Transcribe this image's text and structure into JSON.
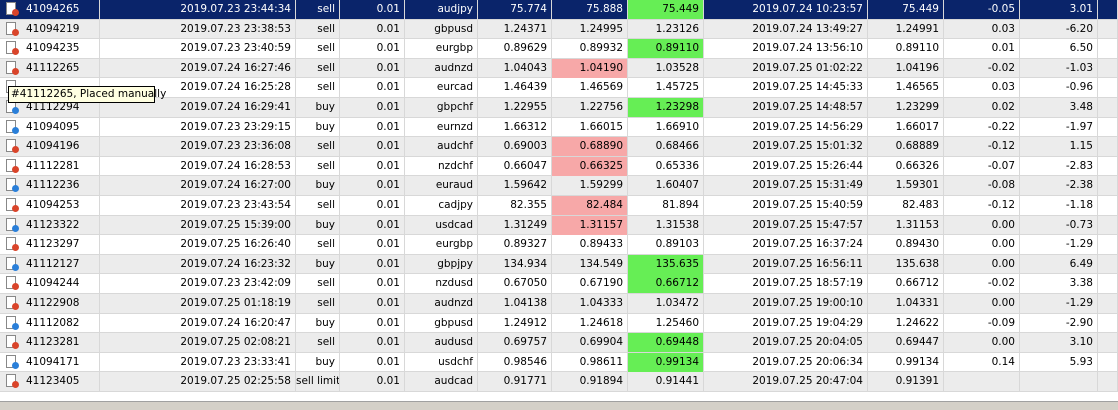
{
  "table": {
    "selected_row": 0,
    "selected_color": "#0a246a",
    "stripe_color": "#ececec",
    "highlight_colors": {
      "green": "#66ee55",
      "pink": "#f7a8a8"
    },
    "highlights": [
      {
        "row": 0,
        "col": 7,
        "color": "green"
      },
      {
        "row": 2,
        "col": 7,
        "color": "green"
      },
      {
        "row": 3,
        "col": 6,
        "color": "pink"
      },
      {
        "row": 5,
        "col": 7,
        "color": "green"
      },
      {
        "row": 7,
        "col": 6,
        "color": "pink"
      },
      {
        "row": 8,
        "col": 6,
        "color": "pink"
      },
      {
        "row": 10,
        "col": 6,
        "color": "pink"
      },
      {
        "row": 11,
        "col": 6,
        "color": "pink"
      },
      {
        "row": 13,
        "col": 7,
        "color": "green"
      },
      {
        "row": 14,
        "col": 7,
        "color": "green"
      },
      {
        "row": 17,
        "col": 7,
        "color": "green"
      },
      {
        "row": 18,
        "col": 7,
        "color": "green"
      }
    ],
    "rows": [
      {
        "icon": "#d9442a",
        "cells": [
          "41094265",
          "2019.07.23 23:44:34",
          "sell",
          "0.01",
          "audjpy",
          "75.774",
          "75.888",
          "75.449",
          "2019.07.24 10:23:57",
          "75.449",
          "-0.05",
          "3.01"
        ]
      },
      {
        "icon": "#d9442a",
        "cells": [
          "41094219",
          "2019.07.23 23:38:53",
          "sell",
          "0.01",
          "gbpusd",
          "1.24371",
          "1.24995",
          "1.23126",
          "2019.07.24 13:49:27",
          "1.24991",
          "0.03",
          "-6.20"
        ]
      },
      {
        "icon": "#d9442a",
        "cells": [
          "41094235",
          "2019.07.23 23:40:59",
          "sell",
          "0.01",
          "eurgbp",
          "0.89629",
          "0.89932",
          "0.89110",
          "2019.07.24 13:56:10",
          "0.89110",
          "0.01",
          "6.50"
        ]
      },
      {
        "icon": "#d9442a",
        "cells": [
          "41112265",
          "2019.07.24 16:27:46",
          "sell",
          "0.01",
          "audnzd",
          "1.04043",
          "1.04190",
          "1.03528",
          "2019.07.25 01:02:22",
          "1.04196",
          "-0.02",
          "-1.03"
        ]
      },
      {
        "icon": "#d9442a",
        "cells": [
          null,
          "2019.07.24 16:25:28",
          "sell",
          "0.01",
          "eurcad",
          "1.46439",
          "1.46569",
          "1.45725",
          "2019.07.25 14:45:33",
          "1.46565",
          "0.03",
          "-0.96"
        ]
      },
      {
        "icon": "#2a7fd9",
        "cells": [
          "41112294",
          "2019.07.24 16:29:41",
          "buy",
          "0.01",
          "gbpchf",
          "1.22955",
          "1.22756",
          "1.23298",
          "2019.07.25 14:48:57",
          "1.23299",
          "0.02",
          "3.48"
        ]
      },
      {
        "icon": "#2a7fd9",
        "cells": [
          "41094095",
          "2019.07.23 23:29:15",
          "buy",
          "0.01",
          "eurnzd",
          "1.66312",
          "1.66015",
          "1.66910",
          "2019.07.25 14:56:29",
          "1.66017",
          "-0.22",
          "-1.97"
        ]
      },
      {
        "icon": "#d9442a",
        "cells": [
          "41094196",
          "2019.07.23 23:36:08",
          "sell",
          "0.01",
          "audchf",
          "0.69003",
          "0.68890",
          "0.68466",
          "2019.07.25 15:01:32",
          "0.68889",
          "-0.12",
          "1.15"
        ]
      },
      {
        "icon": "#d9442a",
        "cells": [
          "41112281",
          "2019.07.24 16:28:53",
          "sell",
          "0.01",
          "nzdchf",
          "0.66047",
          "0.66325",
          "0.65336",
          "2019.07.25 15:26:44",
          "0.66326",
          "-0.07",
          "-2.83"
        ]
      },
      {
        "icon": "#2a7fd9",
        "cells": [
          "41112236",
          "2019.07.24 16:27:00",
          "buy",
          "0.01",
          "euraud",
          "1.59642",
          "1.59299",
          "1.60407",
          "2019.07.25 15:31:49",
          "1.59301",
          "-0.08",
          "-2.38"
        ]
      },
      {
        "icon": "#d9442a",
        "cells": [
          "41094253",
          "2019.07.23 23:43:54",
          "sell",
          "0.01",
          "cadjpy",
          "82.355",
          "82.484",
          "81.894",
          "2019.07.25 15:40:59",
          "82.483",
          "-0.12",
          "-1.18"
        ]
      },
      {
        "icon": "#2a7fd9",
        "cells": [
          "41123322",
          "2019.07.25 15:39:00",
          "buy",
          "0.01",
          "usdcad",
          "1.31249",
          "1.31157",
          "1.31538",
          "2019.07.25 15:47:57",
          "1.31153",
          "0.00",
          "-0.73"
        ]
      },
      {
        "icon": "#d9442a",
        "cells": [
          "41123297",
          "2019.07.25 16:26:40",
          "sell",
          "0.01",
          "eurgbp",
          "0.89327",
          "0.89433",
          "0.89103",
          "2019.07.25 16:37:24",
          "0.89430",
          "0.00",
          "-1.29"
        ]
      },
      {
        "icon": "#2a7fd9",
        "cells": [
          "41112127",
          "2019.07.24 16:23:32",
          "buy",
          "0.01",
          "gbpjpy",
          "134.934",
          "134.549",
          "135.635",
          "2019.07.25 16:56:11",
          "135.638",
          "0.00",
          "6.49"
        ]
      },
      {
        "icon": "#d9442a",
        "cells": [
          "41094244",
          "2019.07.23 23:42:09",
          "sell",
          "0.01",
          "nzdusd",
          "0.67050",
          "0.67190",
          "0.66712",
          "2019.07.25 18:57:19",
          "0.66712",
          "-0.02",
          "3.38"
        ]
      },
      {
        "icon": "#d9442a",
        "cells": [
          "41122908",
          "2019.07.25 01:18:19",
          "sell",
          "0.01",
          "audnzd",
          "1.04138",
          "1.04333",
          "1.03472",
          "2019.07.25 19:00:10",
          "1.04331",
          "0.00",
          "-1.29"
        ]
      },
      {
        "icon": "#2a7fd9",
        "cells": [
          "41112082",
          "2019.07.24 16:20:47",
          "buy",
          "0.01",
          "gbpusd",
          "1.24912",
          "1.24618",
          "1.25460",
          "2019.07.25 19:04:29",
          "1.24622",
          "-0.09",
          "-2.90"
        ]
      },
      {
        "icon": "#d9442a",
        "cells": [
          "41123281",
          "2019.07.25 02:08:21",
          "sell",
          "0.01",
          "audusd",
          "0.69757",
          "0.69904",
          "0.69448",
          "2019.07.25 20:04:05",
          "0.69447",
          "0.00",
          "3.10"
        ]
      },
      {
        "icon": "#2a7fd9",
        "cells": [
          "41094171",
          "2019.07.23 23:33:41",
          "buy",
          "0.01",
          "usdchf",
          "0.98546",
          "0.98611",
          "0.99134",
          "2019.07.25 20:06:34",
          "0.99134",
          "0.14",
          "5.93"
        ]
      },
      {
        "icon": "#d9442a",
        "cells": [
          "41123405",
          "2019.07.25 02:25:58",
          "sell limit",
          "0.01",
          "audcad",
          "0.91771",
          "0.91894",
          "0.91441",
          "2019.07.25 20:47:04",
          "0.91391",
          null,
          null
        ]
      }
    ]
  },
  "tooltip": "#41112265, Placed manually"
}
